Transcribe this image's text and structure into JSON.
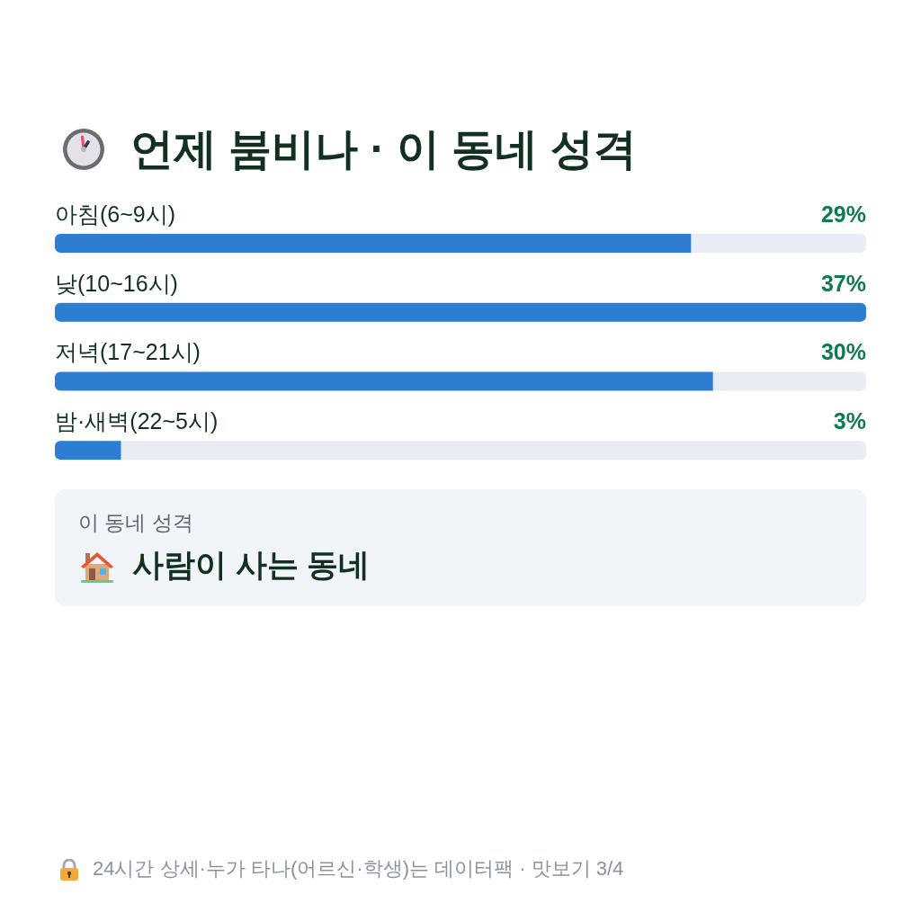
{
  "chart_data": [
    {
      "type": "bar",
      "title": "언제 붐비나 · 이 동네 성격",
      "categories": [
        "아침(6~9시)",
        "낮(10~16시)",
        "저녁(17~21시)",
        "밤·새벽(22~5시)"
      ],
      "values": [
        29,
        37,
        30,
        3
      ],
      "value_labels": [
        "29%",
        "37%",
        "30%",
        "3%"
      ],
      "color": "#2d7dd2",
      "orientation": "horizontal",
      "tick_labels": "y",
      "annotations": [
        "24시간 상세·누가 타나(어르신·학생)는 데이터팩 · 맛보기 3/4"
      ]
    },
    {
      "type": "other",
      "title": "이 동네 성격",
      "annotations": [
        "사람이 사는 동네"
      ]
    }
  ]
}
